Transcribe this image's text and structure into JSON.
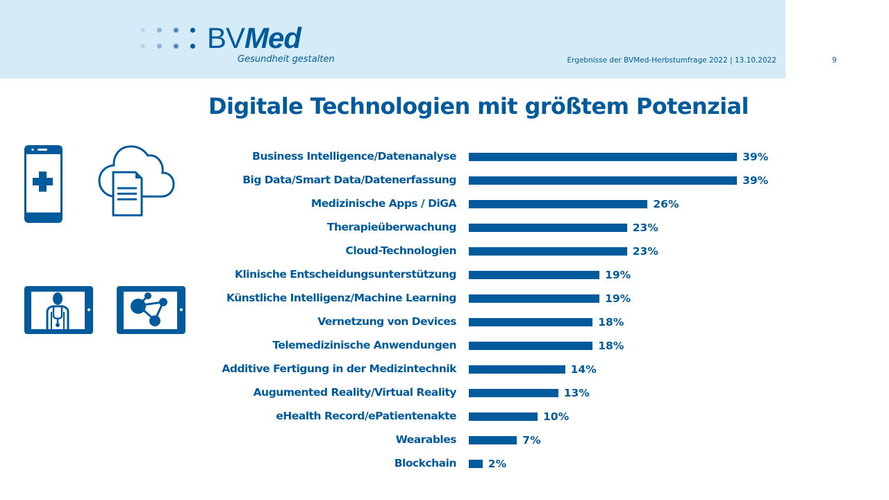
{
  "header": {
    "logo_brand_part1": "BV",
    "logo_brand_part2": "Med",
    "logo_tagline": "Gesundheit gestalten",
    "footer_text": "Ergebnisse der BVMed-Herbstumfrage 2022 | 13.10.2022",
    "page_number": "9",
    "colors": {
      "background": "#d6ebf8",
      "brand": "#005a9b",
      "dot_light": "#b9cfe0",
      "dot_mid": "#7fa7cc",
      "dot_dark": "#3f7fb6"
    }
  },
  "icons": [
    {
      "name": "smartphone-medical-icon"
    },
    {
      "name": "cloud-document-icon"
    },
    {
      "name": "tablet-doctor-icon"
    },
    {
      "name": "tablet-network-icon"
    }
  ],
  "chart_data": {
    "type": "bar",
    "orientation": "horizontal",
    "title": "Digitale Technologien mit größtem Potenzial",
    "xlabel": "",
    "ylabel": "",
    "unit": "%",
    "xlim": [
      0,
      39
    ],
    "grid": false,
    "legend": "none",
    "bar_color": "#005a9b",
    "categories": [
      "Business Intelligence/Datenanalyse",
      "Big Data/Smart Data/Datenerfassung",
      "Medizinische Apps / DiGA",
      "Therapieüberwachung",
      "Cloud-Technologien",
      "Klinische Entscheidungsunterstützung",
      "Künstliche Intelligenz/Machine Learning",
      "Vernetzung von Devices",
      "Telemedizinische Anwendungen",
      "Additive Fertigung in der Medizintechnik",
      "Augumented Reality/Virtual Reality",
      "eHealth Record/ePatientenakte",
      "Wearables",
      "Blockchain"
    ],
    "values": [
      39,
      39,
      26,
      23,
      23,
      19,
      19,
      18,
      18,
      14,
      13,
      10,
      7,
      2
    ],
    "value_labels": [
      "39%",
      "39%",
      "26%",
      "23%",
      "23%",
      "19%",
      "19%",
      "18%",
      "18%",
      "14%",
      "13%",
      "10%",
      "7%",
      "2%"
    ]
  }
}
